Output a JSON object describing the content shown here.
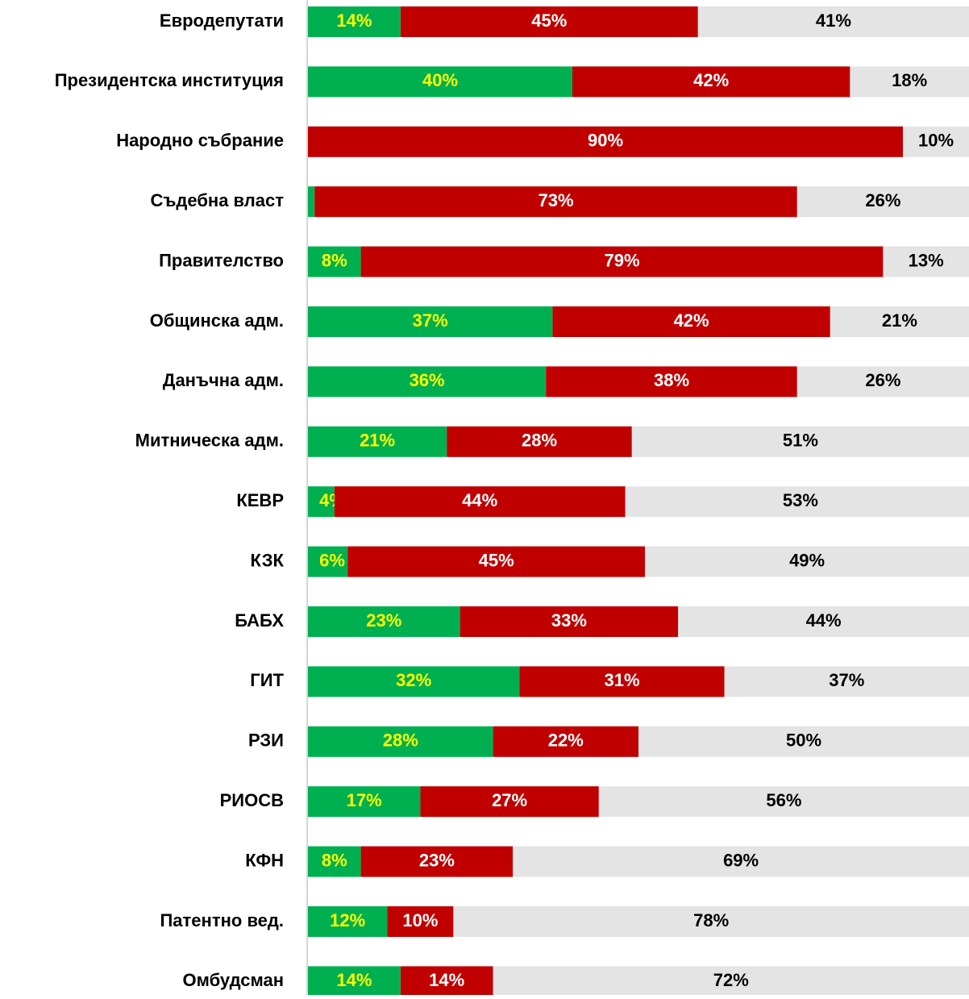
{
  "chart_data": {
    "type": "bar",
    "orientation": "horizontal",
    "stacked": true,
    "categories": [
      "Евродепутати",
      "Президентска институция",
      "Народно събрание",
      "Съдебна власт",
      "Правителство",
      "Общинска адм.",
      "Данъчна адм.",
      "Митническа адм.",
      "КЕВР",
      "КЗК",
      "БАБХ",
      "ГИТ",
      "РЗИ",
      "РИОСВ",
      "КФН",
      "Патентно вед.",
      "Омбудсман"
    ],
    "xlim": [
      0,
      100
    ],
    "series": [
      {
        "color": "#00b050",
        "label_color": "#ffff00",
        "values": [
          14,
          40,
          0,
          1,
          8,
          37,
          36,
          21,
          4,
          6,
          23,
          32,
          28,
          17,
          8,
          12,
          14
        ],
        "value_labels": [
          "14%",
          "40%",
          "0%",
          "1%",
          "8%",
          "37%",
          "36%",
          "21%",
          "4%",
          "6%",
          "23%",
          "32%",
          "28%",
          "17%",
          "8%",
          "12%",
          "14%"
        ]
      },
      {
        "color": "#c00000",
        "label_color": "#ffffff",
        "values": [
          45,
          42,
          90,
          73,
          79,
          42,
          38,
          28,
          44,
          45,
          33,
          31,
          22,
          27,
          23,
          10,
          14
        ],
        "value_labels": [
          "45%",
          "42%",
          "90%",
          "73%",
          "79%",
          "42%",
          "38%",
          "28%",
          "44%",
          "45%",
          "33%",
          "31%",
          "22%",
          "27%",
          "23%",
          "10%",
          "14%"
        ]
      },
      {
        "color": "#e4e4e4",
        "label_color": "#000000",
        "values": [
          41,
          18,
          10,
          26,
          13,
          21,
          26,
          51,
          53,
          49,
          44,
          37,
          50,
          56,
          69,
          78,
          72
        ],
        "value_labels": [
          "41%",
          "18%",
          "10%",
          "26%",
          "13%",
          "21%",
          "26%",
          "51%",
          "53%",
          "49%",
          "44%",
          "37%",
          "50%",
          "56%",
          "69%",
          "78%",
          "72%"
        ]
      }
    ]
  }
}
